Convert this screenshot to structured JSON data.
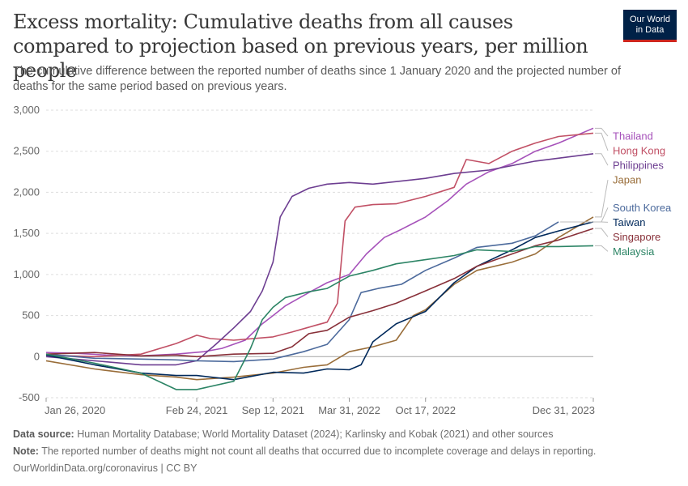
{
  "header": {
    "title": "Excess mortality: Cumulative deaths from all causes compared to projection based on previous years, per million people",
    "subtitle": "The cumulative difference between the reported number of deaths since 1 January 2020 and the projected number of deaths for the same period based on previous years.",
    "logo_line1": "Our World",
    "logo_line2": "in Data"
  },
  "footer": {
    "source_label": "Data source:",
    "source_text": "Human Mortality Database; World Mortality Dataset (2024); Karlinsky and Kobak (2021) and other sources",
    "note_label": "Note:",
    "note_text": "The reported number of deaths might not count all deaths that occurred due to incomplete coverage and delays in reporting.",
    "url": "OurWorldinData.org/coronavirus | CC BY"
  },
  "chart_data": {
    "type": "line",
    "x_unit": "date",
    "xlim": [
      "2020-01-26",
      "2023-12-31"
    ],
    "ylim": [
      -500,
      3000
    ],
    "yticks": [
      -500,
      0,
      500,
      1000,
      1500,
      2000,
      2500,
      3000
    ],
    "ytick_labels": [
      "-500",
      "0",
      "500",
      "1,000",
      "1,500",
      "2,000",
      "2,500",
      "3,000"
    ],
    "xticks": [
      "2020-01-26",
      "2021-02-24",
      "2021-09-12",
      "2022-03-31",
      "2022-10-17",
      "2023-12-31"
    ],
    "xtick_labels": [
      "Jan 26, 2020",
      "Feb 24, 2021",
      "Sep 12, 2021",
      "Mar 31, 2022",
      "Oct 17, 2022",
      "Dec 31, 2023"
    ],
    "grid": "horizontal dashed",
    "legend": "right, labels at line ends",
    "series": [
      {
        "name": "Thailand",
        "color": "#a652ba",
        "points": [
          [
            "2020-01-26",
            50
          ],
          [
            "2020-04-15",
            40
          ],
          [
            "2020-07-01",
            20
          ],
          [
            "2020-10-01",
            10
          ],
          [
            "2021-01-01",
            30
          ],
          [
            "2021-03-15",
            60
          ],
          [
            "2021-05-01",
            100
          ],
          [
            "2021-07-01",
            200
          ],
          [
            "2021-08-15",
            400
          ],
          [
            "2021-09-12",
            500
          ],
          [
            "2021-10-15",
            620
          ],
          [
            "2021-12-15",
            780
          ],
          [
            "2022-02-01",
            900
          ],
          [
            "2022-03-31",
            1000
          ],
          [
            "2022-05-15",
            1250
          ],
          [
            "2022-07-01",
            1450
          ],
          [
            "2022-08-15",
            1550
          ],
          [
            "2022-10-17",
            1700
          ],
          [
            "2022-12-15",
            1900
          ],
          [
            "2023-02-01",
            2100
          ],
          [
            "2023-04-01",
            2250
          ],
          [
            "2023-06-01",
            2350
          ],
          [
            "2023-08-01",
            2500
          ],
          [
            "2023-10-01",
            2600
          ],
          [
            "2023-12-31",
            2780
          ]
        ]
      },
      {
        "name": "Hong Kong",
        "color": "#c15065",
        "points": [
          [
            "2020-01-26",
            20
          ],
          [
            "2020-06-01",
            0
          ],
          [
            "2020-10-01",
            30
          ],
          [
            "2021-01-01",
            160
          ],
          [
            "2021-02-24",
            260
          ],
          [
            "2021-04-01",
            220
          ],
          [
            "2021-06-01",
            200
          ],
          [
            "2021-09-12",
            240
          ],
          [
            "2021-11-01",
            300
          ],
          [
            "2022-01-01",
            380
          ],
          [
            "2022-02-01",
            420
          ],
          [
            "2022-02-28",
            650
          ],
          [
            "2022-03-20",
            1650
          ],
          [
            "2022-04-15",
            1820
          ],
          [
            "2022-06-01",
            1850
          ],
          [
            "2022-08-01",
            1860
          ],
          [
            "2022-10-17",
            1950
          ],
          [
            "2022-12-31",
            2060
          ],
          [
            "2023-02-01",
            2400
          ],
          [
            "2023-04-01",
            2350
          ],
          [
            "2023-06-01",
            2500
          ],
          [
            "2023-08-01",
            2600
          ],
          [
            "2023-10-01",
            2680
          ],
          [
            "2023-12-31",
            2720
          ]
        ]
      },
      {
        "name": "Philippines",
        "color": "#6d3e91",
        "points": [
          [
            "2020-01-26",
            0
          ],
          [
            "2020-06-01",
            -50
          ],
          [
            "2020-10-01",
            -100
          ],
          [
            "2021-01-01",
            -100
          ],
          [
            "2021-02-24",
            -50
          ],
          [
            "2021-04-15",
            150
          ],
          [
            "2021-06-01",
            350
          ],
          [
            "2021-07-15",
            550
          ],
          [
            "2021-08-15",
            800
          ],
          [
            "2021-09-12",
            1150
          ],
          [
            "2021-10-01",
            1700
          ],
          [
            "2021-11-01",
            1950
          ],
          [
            "2021-12-15",
            2050
          ],
          [
            "2022-02-01",
            2100
          ],
          [
            "2022-03-31",
            2120
          ],
          [
            "2022-06-01",
            2100
          ],
          [
            "2022-10-17",
            2170
          ],
          [
            "2023-01-01",
            2230
          ],
          [
            "2023-04-01",
            2270
          ],
          [
            "2023-08-01",
            2380
          ],
          [
            "2023-12-31",
            2470
          ]
        ]
      },
      {
        "name": "Japan",
        "color": "#996d39",
        "points": [
          [
            "2020-01-26",
            -50
          ],
          [
            "2020-06-01",
            -150
          ],
          [
            "2020-10-01",
            -220
          ],
          [
            "2021-01-01",
            -250
          ],
          [
            "2021-02-24",
            -280
          ],
          [
            "2021-06-01",
            -250
          ],
          [
            "2021-09-12",
            -200
          ],
          [
            "2021-12-01",
            -130
          ],
          [
            "2022-02-01",
            -100
          ],
          [
            "2022-03-31",
            60
          ],
          [
            "2022-06-01",
            120
          ],
          [
            "2022-08-01",
            200
          ],
          [
            "2022-09-15",
            500
          ],
          [
            "2022-10-17",
            570
          ],
          [
            "2022-12-31",
            880
          ],
          [
            "2023-03-01",
            1050
          ],
          [
            "2023-06-01",
            1150
          ],
          [
            "2023-08-01",
            1250
          ],
          [
            "2023-10-01",
            1450
          ],
          [
            "2023-12-31",
            1700
          ]
        ]
      },
      {
        "name": "South Korea",
        "color": "#4c6a9c",
        "points": [
          [
            "2020-01-26",
            30
          ],
          [
            "2020-06-01",
            -20
          ],
          [
            "2020-10-01",
            -30
          ],
          [
            "2021-01-01",
            -40
          ],
          [
            "2021-02-24",
            -50
          ],
          [
            "2021-06-01",
            -60
          ],
          [
            "2021-09-12",
            -30
          ],
          [
            "2021-12-01",
            60
          ],
          [
            "2022-02-01",
            150
          ],
          [
            "2022-03-31",
            450
          ],
          [
            "2022-05-01",
            780
          ],
          [
            "2022-06-15",
            830
          ],
          [
            "2022-08-15",
            880
          ],
          [
            "2022-10-17",
            1050
          ],
          [
            "2022-12-31",
            1200
          ],
          [
            "2023-03-01",
            1330
          ],
          [
            "2023-06-01",
            1380
          ],
          [
            "2023-08-01",
            1470
          ],
          [
            "2023-10-01",
            1640
          ]
        ]
      },
      {
        "name": "Taiwan",
        "color": "#00295b",
        "points": [
          [
            "2020-01-26",
            20
          ],
          [
            "2020-06-01",
            -100
          ],
          [
            "2020-10-01",
            -200
          ],
          [
            "2021-01-01",
            -230
          ],
          [
            "2021-02-24",
            -230
          ],
          [
            "2021-06-01",
            -280
          ],
          [
            "2021-09-12",
            -190
          ],
          [
            "2021-12-01",
            -200
          ],
          [
            "2022-02-01",
            -150
          ],
          [
            "2022-03-31",
            -160
          ],
          [
            "2022-05-01",
            -100
          ],
          [
            "2022-06-01",
            180
          ],
          [
            "2022-08-01",
            400
          ],
          [
            "2022-10-17",
            550
          ],
          [
            "2022-12-31",
            900
          ],
          [
            "2023-03-01",
            1100
          ],
          [
            "2023-06-01",
            1300
          ],
          [
            "2023-08-01",
            1450
          ],
          [
            "2023-10-01",
            1530
          ],
          [
            "2023-12-31",
            1640
          ]
        ]
      },
      {
        "name": "Singapore",
        "color": "#883039",
        "points": [
          [
            "2020-01-26",
            30
          ],
          [
            "2020-06-01",
            50
          ],
          [
            "2020-10-01",
            10
          ],
          [
            "2021-01-01",
            20
          ],
          [
            "2021-02-24",
            0
          ],
          [
            "2021-06-01",
            30
          ],
          [
            "2021-09-12",
            40
          ],
          [
            "2021-11-01",
            120
          ],
          [
            "2021-12-15",
            280
          ],
          [
            "2022-02-01",
            320
          ],
          [
            "2022-03-31",
            480
          ],
          [
            "2022-06-01",
            560
          ],
          [
            "2022-08-01",
            650
          ],
          [
            "2022-10-17",
            800
          ],
          [
            "2022-12-31",
            950
          ],
          [
            "2023-03-01",
            1100
          ],
          [
            "2023-06-01",
            1250
          ],
          [
            "2023-08-01",
            1350
          ],
          [
            "2023-10-01",
            1420
          ],
          [
            "2023-12-31",
            1560
          ]
        ]
      },
      {
        "name": "Malaysia",
        "color": "#2c8465",
        "points": [
          [
            "2020-01-26",
            30
          ],
          [
            "2020-06-01",
            -80
          ],
          [
            "2020-10-01",
            -200
          ],
          [
            "2021-01-01",
            -400
          ],
          [
            "2021-02-24",
            -400
          ],
          [
            "2021-06-01",
            -300
          ],
          [
            "2021-07-15",
            100
          ],
          [
            "2021-08-15",
            450
          ],
          [
            "2021-09-12",
            600
          ],
          [
            "2021-10-15",
            720
          ],
          [
            "2021-12-15",
            790
          ],
          [
            "2022-02-01",
            830
          ],
          [
            "2022-03-31",
            980
          ],
          [
            "2022-06-01",
            1050
          ],
          [
            "2022-08-01",
            1130
          ],
          [
            "2022-10-17",
            1180
          ],
          [
            "2022-12-31",
            1230
          ],
          [
            "2023-03-01",
            1300
          ],
          [
            "2023-06-01",
            1280
          ],
          [
            "2023-08-01",
            1340
          ],
          [
            "2023-10-01",
            1340
          ],
          [
            "2023-12-31",
            1350
          ]
        ]
      }
    ]
  }
}
